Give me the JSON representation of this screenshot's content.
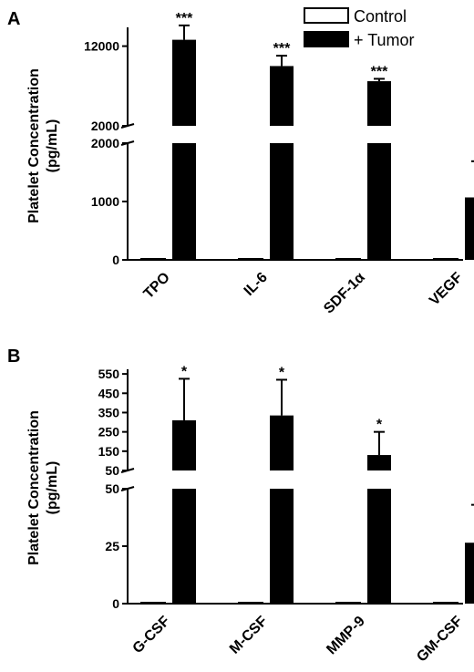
{
  "legend": [
    {
      "label": "Control",
      "color": "#ffffff"
    },
    {
      "label": "+ Tumor",
      "color": "#000000"
    }
  ],
  "chart_data": [
    {
      "panel": "A",
      "type": "bar",
      "ylabel": [
        "Platelet  Concentration",
        "(pg/mL)"
      ],
      "categories": [
        "TPO",
        "IL-6",
        "SDF-1α",
        "VEGF"
      ],
      "y_axis_break": true,
      "lower_ylim": [
        0,
        2000
      ],
      "upper_ylim": [
        2000,
        14700
      ],
      "lower_ticks": [
        0,
        1000,
        2000
      ],
      "upper_ticks": [
        2000,
        12000
      ],
      "series": [
        {
          "name": "Control",
          "values": [
            5,
            5,
            5,
            5
          ],
          "errors": [
            0,
            0,
            0,
            0
          ]
        },
        {
          "name": "+ Tumor",
          "values": [
            12800,
            9500,
            7600,
            1070
          ],
          "errors": [
            1800,
            1300,
            300,
            620
          ]
        }
      ],
      "significance": [
        "***",
        "***",
        "***",
        "*"
      ]
    },
    {
      "panel": "B",
      "type": "bar",
      "ylabel": [
        "Platelet  Concentration",
        "(pg/mL)"
      ],
      "categories": [
        "G-CSF",
        "M-CSF",
        "MMP-9",
        "GM-CSF"
      ],
      "y_axis_break": true,
      "lower_ylim": [
        0,
        50
      ],
      "upper_ylim": [
        50,
        560
      ],
      "lower_ticks": [
        0,
        25,
        50
      ],
      "upper_ticks": [
        50,
        150,
        250,
        350,
        450,
        550
      ],
      "series": [
        {
          "name": "Control",
          "values": [
            0.3,
            0.3,
            0.3,
            0.3
          ],
          "errors": [
            0,
            0,
            0,
            0
          ]
        },
        {
          "name": "+ Tumor",
          "values": [
            310,
            335,
            130,
            26.5
          ],
          "errors": [
            215,
            185,
            120,
            16.5
          ]
        }
      ],
      "significance": [
        "*",
        "*",
        "*",
        "*"
      ]
    }
  ]
}
